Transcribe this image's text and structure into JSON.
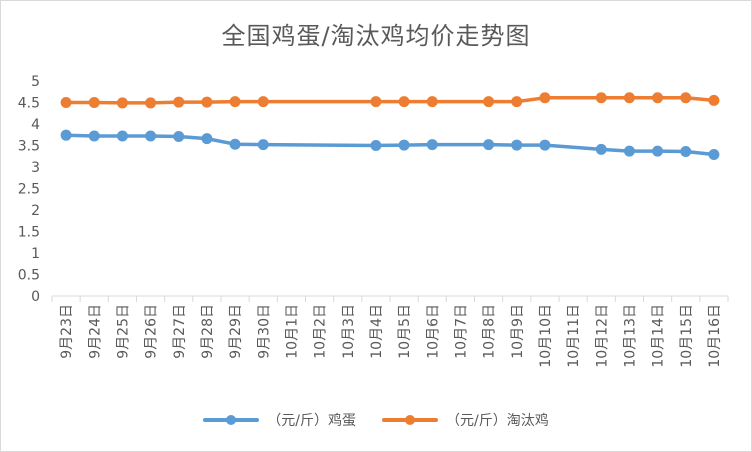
{
  "chart_data": {
    "type": "line",
    "title": "全国鸡蛋/淘汰鸡均价走势图",
    "xlabel": "",
    "ylabel": "",
    "ylim": [
      0,
      5
    ],
    "yticks": [
      "0",
      "0.5",
      "1",
      "1.5",
      "2",
      "2.5",
      "3",
      "3.5",
      "4",
      "4.5",
      "5"
    ],
    "grid": false,
    "legend_position": "bottom",
    "categories": [
      "9月23日",
      "9月24日",
      "9月25日",
      "9月26日",
      "9月27日",
      "9月28日",
      "9月29日",
      "9月30日",
      "10月1日",
      "10月2日",
      "10月3日",
      "10月4日",
      "10月5日",
      "10月6日",
      "10月7日",
      "10月8日",
      "10月9日",
      "10月10日",
      "10月11日",
      "10月12日",
      "10月13日",
      "10月14日",
      "10月15日",
      "10月16日"
    ],
    "series": [
      {
        "name": "（元/斤）鸡蛋",
        "color": "#5b9bd5",
        "values": [
          3.74,
          3.72,
          3.72,
          3.72,
          3.71,
          3.66,
          3.53,
          3.52,
          null,
          null,
          null,
          3.5,
          3.51,
          3.52,
          null,
          3.52,
          3.51,
          3.51,
          null,
          3.41,
          3.37,
          3.37,
          3.36,
          3.29
        ]
      },
      {
        "name": "（元/斤）淘汰鸡",
        "color": "#ed7d31",
        "values": [
          4.5,
          4.5,
          4.49,
          4.49,
          4.51,
          4.51,
          4.52,
          4.52,
          null,
          null,
          null,
          4.52,
          4.52,
          4.52,
          null,
          4.52,
          4.52,
          4.61,
          null,
          4.61,
          4.61,
          4.61,
          4.61,
          4.55
        ]
      }
    ]
  }
}
